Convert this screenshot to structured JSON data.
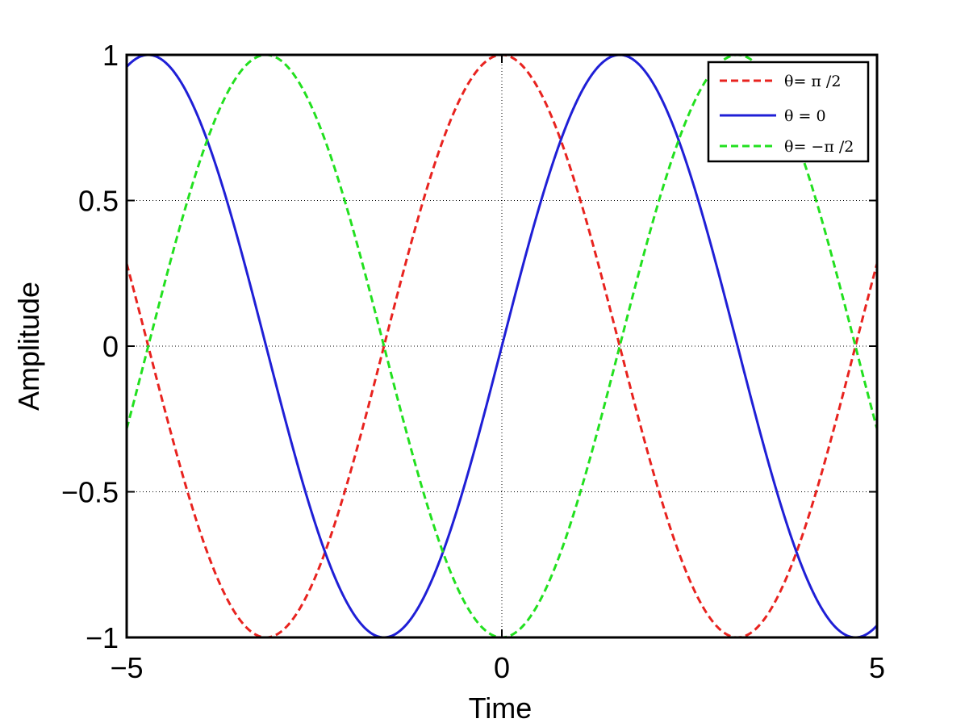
{
  "chart_data": {
    "type": "line",
    "title": "",
    "xlabel": "Time",
    "ylabel": "Amplitude",
    "xlim": [
      -5,
      5
    ],
    "ylim": [
      -1,
      1
    ],
    "xticks": [
      -5,
      0,
      5
    ],
    "xtick_labels": [
      "−5",
      "0",
      "5"
    ],
    "yticks": [
      -1,
      -0.5,
      0,
      0.5,
      1
    ],
    "ytick_labels": [
      "−1",
      "−0.5",
      "0",
      "0.5",
      "1"
    ],
    "grid": true,
    "legend_position": "top-right",
    "series": [
      {
        "name": "θ= π /2",
        "function": "cos(x)",
        "color": "#e8231f",
        "style": "dashed",
        "x": [
          -5,
          -4.5,
          -4,
          -3.5,
          -3,
          -2.5,
          -2,
          -1.5,
          -1,
          -0.5,
          0,
          0.5,
          1,
          1.5,
          2,
          2.5,
          3,
          3.5,
          4,
          4.5,
          5
        ],
        "values": [
          0.28,
          -0.21,
          -0.65,
          -0.94,
          -0.99,
          -0.8,
          -0.42,
          0.07,
          0.54,
          0.88,
          1,
          0.88,
          0.54,
          0.07,
          -0.42,
          -0.8,
          -0.99,
          -0.94,
          -0.65,
          -0.21,
          0.28
        ]
      },
      {
        "name": "θ  = 0",
        "function": "sin(x)",
        "color": "#1f1fd6",
        "style": "solid",
        "x": [
          -5,
          -4.5,
          -4,
          -3.5,
          -3,
          -2.5,
          -2,
          -1.5,
          -1,
          -0.5,
          0,
          0.5,
          1,
          1.5,
          2,
          2.5,
          3,
          3.5,
          4,
          4.5,
          5
        ],
        "values": [
          0.96,
          0.98,
          0.76,
          0.35,
          -0.14,
          -0.6,
          -0.91,
          -1,
          -0.84,
          -0.48,
          0,
          0.48,
          0.84,
          1,
          0.91,
          0.6,
          0.14,
          -0.35,
          -0.76,
          -0.98,
          -0.96
        ]
      },
      {
        "name": "θ= −π /2",
        "function": "-cos(x)",
        "color": "#22e01f",
        "style": "dashed",
        "x": [
          -5,
          -4.5,
          -4,
          -3.5,
          -3,
          -2.5,
          -2,
          -1.5,
          -1,
          -0.5,
          0,
          0.5,
          1,
          1.5,
          2,
          2.5,
          3,
          3.5,
          4,
          4.5,
          5
        ],
        "values": [
          -0.28,
          0.21,
          0.65,
          0.94,
          0.99,
          0.8,
          0.42,
          -0.07,
          -0.54,
          -0.88,
          -1,
          -0.88,
          -0.54,
          -0.07,
          0.42,
          0.8,
          0.99,
          0.94,
          0.65,
          0.21,
          -0.28
        ]
      }
    ]
  }
}
